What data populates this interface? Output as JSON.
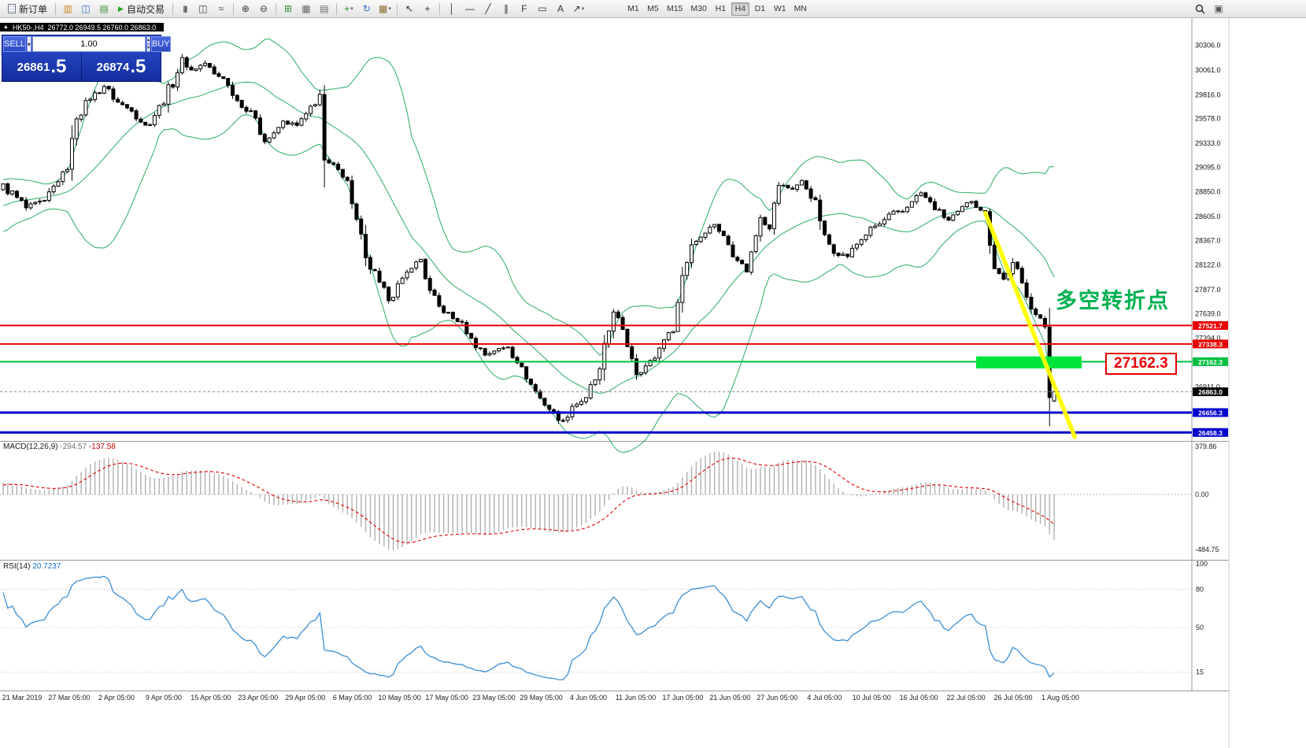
{
  "toolbar": {
    "caret_glyph": "▾",
    "right_window_glyph": "▣",
    "timeframes": {
      "items": [
        "M1",
        "M5",
        "M15",
        "M30",
        "H1",
        "H4",
        "D1",
        "W1",
        "MN"
      ],
      "active": "H4"
    },
    "items": [
      {
        "t": "btn",
        "name": "new-order-button",
        "label": "新订单",
        "icon": "doc",
        "glyph": ""
      },
      {
        "t": "sep"
      },
      {
        "t": "icon",
        "name": "profiles-icon",
        "glyph": "▥",
        "color": "#c8881a"
      },
      {
        "t": "icon",
        "name": "market-watch-icon",
        "glyph": "◫",
        "color": "#2f6fc0"
      },
      {
        "t": "icon",
        "name": "strategy-tester-icon",
        "glyph": "▤",
        "color": "#3f8f3f"
      },
      {
        "t": "btn",
        "name": "autotrade-button",
        "label": "自动交易",
        "icon": "play",
        "glyph": "▶"
      },
      {
        "t": "sep"
      },
      {
        "t": "icon",
        "name": "bar-chart-icon",
        "glyph": "|||",
        "color": "#444",
        "cls": "glyph3"
      },
      {
        "t": "icon",
        "name": "candlestick-chart-icon",
        "glyph": "◫",
        "color": "#444"
      },
      {
        "t": "icon",
        "name": "line-chart-icon",
        "glyph": "≈",
        "color": "#444"
      },
      {
        "t": "sep"
      },
      {
        "t": "icon",
        "name": "zoom-in-icon",
        "glyph": "⊕",
        "color": "#333"
      },
      {
        "t": "icon",
        "name": "zoom-out-icon",
        "glyph": "⊖",
        "color": "#333"
      },
      {
        "t": "sep"
      },
      {
        "t": "icon",
        "name": "tile-windows-icon",
        "glyph": "⊞",
        "color": "#2e8b2e"
      },
      {
        "t": "icon",
        "name": "arrange-tile-icon",
        "glyph": "▦",
        "color": "#666"
      },
      {
        "t": "icon",
        "name": "arrange-cascade-icon",
        "glyph": "▤",
        "color": "#666"
      },
      {
        "t": "sep"
      },
      {
        "t": "icon",
        "name": "new-chart-icon",
        "glyph": "+",
        "color": "#1e8a1e",
        "caret": true
      },
      {
        "t": "icon",
        "name": "refresh-icon",
        "glyph": "↻",
        "color": "#2f6fc0"
      },
      {
        "t": "icon",
        "name": "templates-icon",
        "glyph": "▦",
        "color": "#8a6a2a",
        "caret": true
      },
      {
        "t": "sep"
      },
      {
        "t": "icon",
        "name": "cursor-icon",
        "glyph": "↖",
        "color": "#333"
      },
      {
        "t": "icon",
        "name": "crosshair-icon",
        "glyph": "+",
        "color": "#333"
      },
      {
        "t": "sep"
      },
      {
        "t": "icon",
        "name": "vertical-line-icon",
        "glyph": "│",
        "color": "#333"
      },
      {
        "t": "icon",
        "name": "horizontal-line-icon",
        "glyph": "—",
        "color": "#333"
      },
      {
        "t": "icon",
        "name": "trendline-icon",
        "glyph": "╱",
        "color": "#333"
      },
      {
        "t": "icon",
        "name": "channel-icon",
        "glyph": "∥",
        "color": "#333"
      },
      {
        "t": "icon",
        "name": "fibonacci-icon",
        "glyph": "F",
        "color": "#333"
      },
      {
        "t": "icon",
        "name": "shapes-icon",
        "glyph": "▭",
        "color": "#333"
      },
      {
        "t": "icon",
        "name": "text-label-icon",
        "glyph": "A",
        "color": "#333"
      },
      {
        "t": "icon",
        "name": "arrows-icon",
        "glyph": "↗",
        "color": "#333",
        "caret": true
      },
      {
        "t": "tf"
      }
    ]
  },
  "chart_header": {
    "collapse_glyph": "▲",
    "symbol_period": "HK50-,H4",
    "ohlc": "26772.0 26949.5 26760.0 26863.0"
  },
  "trade_panel": {
    "sell_label": "SELL",
    "buy_label": "BUY",
    "volume": "1.00",
    "preset_caret": "▾",
    "stepper_up": "▴",
    "stepper_down": "▾",
    "sell_main": "26861",
    "sell_frac": ".5",
    "buy_main": "26874",
    "buy_frac": ".5"
  },
  "annotations": {
    "turning_point": "多空转折点",
    "price_callout": "27162.3"
  },
  "macd": {
    "label": "MACD(12,26,9)",
    "main_value": "-294.57",
    "signal_value": "-137.58",
    "axis_top": "379.86",
    "axis_zero": "0.00",
    "axis_bottom": "-484.75"
  },
  "rsi": {
    "label": "RSI(14)",
    "value": "20.7237",
    "axis": [
      "100",
      "80",
      "50",
      "15"
    ],
    "levels": [
      80,
      50,
      15
    ]
  },
  "chart_data": {
    "type": "candlestick",
    "symbol": "HK50-",
    "period": "H4",
    "last_ohlc": {
      "open": 26772.0,
      "high": 26949.5,
      "low": 26760.0,
      "close": 26863.0
    },
    "current_price": 26863.0,
    "price_top": 30570,
    "price_bottom": 26390,
    "y_ticks": [
      30306.0,
      30061.0,
      29816.0,
      29578.0,
      29333.0,
      29095.0,
      28850.0,
      28605.0,
      28367.0,
      28122.0,
      27877.0,
      27639.0,
      27394.0,
      26911.0
    ],
    "hlines": [
      {
        "price": 27521.7,
        "color": "#e80000",
        "width": 2,
        "label": "27521.7"
      },
      {
        "price": 27338.3,
        "color": "#e80000",
        "width": 2,
        "label": "27338.3"
      },
      {
        "price": 27162.3,
        "color": "#00bf40",
        "width": 2,
        "label": "27162.3"
      },
      {
        "price": 26656.3,
        "color": "#0000cd",
        "width": 3,
        "label": "26656.3"
      },
      {
        "price": 26458.3,
        "color": "#0000cd",
        "width": 3,
        "label": "26458.3"
      }
    ],
    "bollinger": {
      "period": 20,
      "deviation": 2,
      "color": "#3cb371"
    },
    "highlight_rect": {
      "bar_start": 212,
      "bar_end": 235,
      "price_top": 27215,
      "price_bottom": 27095,
      "color": "#00e53c"
    },
    "trend_line": {
      "bar1": 214,
      "price1": 28640,
      "bar2": 233.5,
      "price2": 26415,
      "color": "#ffff00",
      "width": 5.5
    },
    "x_labels": [
      "21 Mar 2019",
      "27 Mar 05:00",
      "2 Apr 05:00",
      "9 Apr 05:00",
      "15 Apr 05:00",
      "23 Apr 05:00",
      "29 Apr 05:00",
      "6 May 05:00",
      "10 May 05:00",
      "17 May 05:00",
      "23 May 05:00",
      "29 May 05:00",
      "4 Jun 05:00",
      "11 Jun 05:00",
      "17 Jun 05:00",
      "21 Jun 05:00",
      "27 Jun 05:00",
      "4 Jul 05:00",
      "10 Jul 05:00",
      "16 Jul 05:00",
      "22 Jul 05:00",
      "26 Jul 05:00",
      "1 Aug 05:00"
    ],
    "bars": 230,
    "anchors": [
      [
        -20,
        28500
      ],
      [
        -10,
        28700
      ],
      [
        0,
        28920
      ],
      [
        5,
        28690
      ],
      [
        9,
        28760
      ],
      [
        12,
        28960
      ],
      [
        14,
        29080
      ],
      [
        16,
        29590
      ],
      [
        19,
        29780
      ],
      [
        22,
        29900
      ],
      [
        25,
        29740
      ],
      [
        28,
        29660
      ],
      [
        31,
        29510
      ],
      [
        35,
        29740
      ],
      [
        39,
        30170
      ],
      [
        41,
        30060
      ],
      [
        44,
        30130
      ],
      [
        46,
        30020
      ],
      [
        48,
        29980
      ],
      [
        50,
        29820
      ],
      [
        52,
        29700
      ],
      [
        55,
        29590
      ],
      [
        57,
        29350
      ],
      [
        59,
        29430
      ],
      [
        61,
        29550
      ],
      [
        64,
        29510
      ],
      [
        66,
        29620
      ],
      [
        69,
        29820
      ],
      [
        70,
        29150
      ],
      [
        73,
        29080
      ],
      [
        75,
        28960
      ],
      [
        77,
        28570
      ],
      [
        79,
        28180
      ],
      [
        82,
        27940
      ],
      [
        84,
        27780
      ],
      [
        87,
        27980
      ],
      [
        89,
        28100
      ],
      [
        91,
        28180
      ],
      [
        93,
        27860
      ],
      [
        95,
        27710
      ],
      [
        98,
        27590
      ],
      [
        100,
        27550
      ],
      [
        102,
        27390
      ],
      [
        105,
        27230
      ],
      [
        107,
        27270
      ],
      [
        110,
        27310
      ],
      [
        112,
        27160
      ],
      [
        114,
        27000
      ],
      [
        117,
        26800
      ],
      [
        119,
        26690
      ],
      [
        122,
        26570
      ],
      [
        124,
        26720
      ],
      [
        127,
        26800
      ],
      [
        130,
        27080
      ],
      [
        133,
        27670
      ],
      [
        135,
        27470
      ],
      [
        137,
        27200
      ],
      [
        138,
        27040
      ],
      [
        140,
        27120
      ],
      [
        142,
        27200
      ],
      [
        144,
        27390
      ],
      [
        146,
        27470
      ],
      [
        148,
        28020
      ],
      [
        150,
        28330
      ],
      [
        153,
        28450
      ],
      [
        155,
        28530
      ],
      [
        157,
        28410
      ],
      [
        160,
        28180
      ],
      [
        162,
        28060
      ],
      [
        163,
        28250
      ],
      [
        165,
        28610
      ],
      [
        167,
        28490
      ],
      [
        169,
        28920
      ],
      [
        172,
        28880
      ],
      [
        174,
        28960
      ],
      [
        177,
        28760
      ],
      [
        179,
        28410
      ],
      [
        181,
        28250
      ],
      [
        184,
        28210
      ],
      [
        186,
        28330
      ],
      [
        189,
        28490
      ],
      [
        191,
        28530
      ],
      [
        194,
        28650
      ],
      [
        196,
        28650
      ],
      [
        198,
        28760
      ],
      [
        200,
        28840
      ],
      [
        203,
        28680
      ],
      [
        206,
        28570
      ],
      [
        208,
        28650
      ],
      [
        211,
        28760
      ],
      [
        214,
        28650
      ],
      [
        216,
        28100
      ],
      [
        218,
        27980
      ],
      [
        220,
        28140
      ],
      [
        223,
        27820
      ],
      [
        225,
        27630
      ],
      [
        227,
        27510
      ],
      [
        228,
        26820
      ],
      [
        229,
        26863
      ]
    ]
  }
}
